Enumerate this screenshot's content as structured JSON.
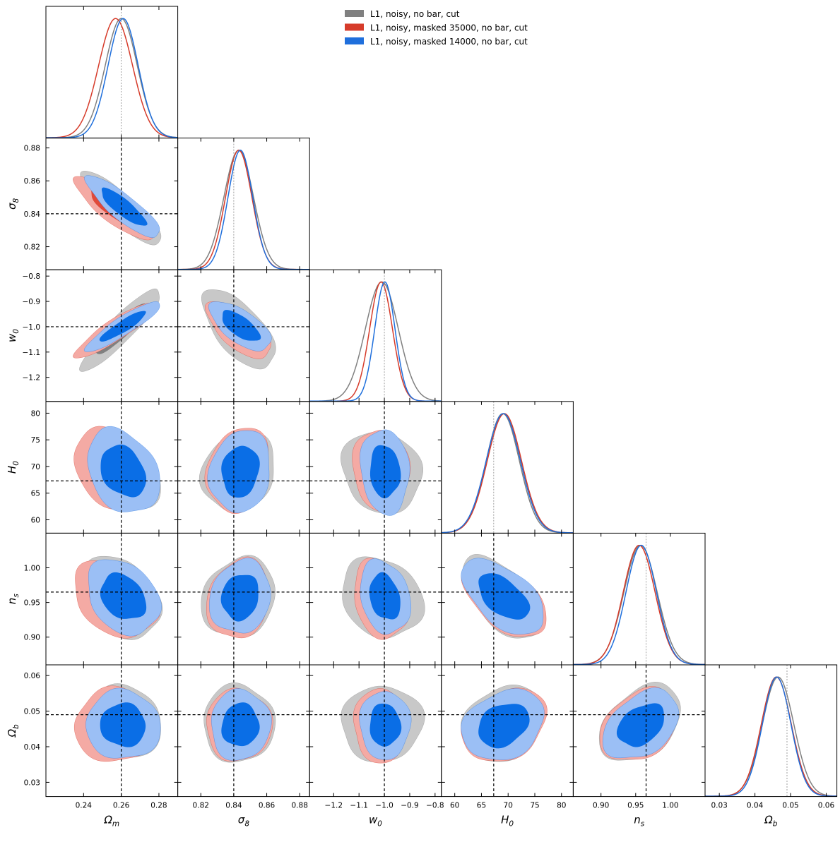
{
  "chart_data": {
    "type": "triangle",
    "params": [
      {
        "name": "omega_m",
        "sym": "Ω",
        "sub": "m",
        "range": [
          0.22,
          0.29
        ],
        "ticks": [
          0.24,
          0.26,
          0.28
        ],
        "tickLabels": [
          "0.24",
          "0.26",
          "0.28"
        ],
        "truth": 0.26
      },
      {
        "name": "sigma_8",
        "sym": "σ",
        "sub": "8",
        "range": [
          0.806,
          0.886
        ],
        "ticks": [
          0.82,
          0.84,
          0.86,
          0.88
        ],
        "tickLabels": [
          "0.82",
          "0.84",
          "0.86",
          "0.88"
        ],
        "truth": 0.84
      },
      {
        "name": "w_0",
        "sym": "w",
        "sub": "0",
        "range": [
          -1.295,
          -0.775
        ],
        "ticks": [
          -1.2,
          -1.1,
          -1.0,
          -0.9,
          -0.8
        ],
        "tickLabels": [
          "−1.2",
          "−1.1",
          "−1.0",
          "−0.9",
          "−0.8"
        ],
        "truth": -1.0
      },
      {
        "name": "H_0",
        "sym": "H",
        "sub": "0",
        "range": [
          57.5,
          82.2
        ],
        "ticks": [
          60,
          65,
          70,
          75,
          80
        ],
        "tickLabels": [
          "60",
          "65",
          "70",
          "75",
          "80"
        ],
        "truth": 67.3
      },
      {
        "name": "n_s",
        "sym": "n",
        "sub": "s",
        "range": [
          0.86,
          1.05
        ],
        "ticks": [
          0.9,
          0.95,
          1.0
        ],
        "tickLabels": [
          "0.90",
          "0.95",
          "1.00"
        ],
        "truth": 0.965
      },
      {
        "name": "omega_b",
        "sym": "Ω",
        "sub": "b",
        "range": [
          0.026,
          0.063
        ],
        "ticks": [
          0.03,
          0.04,
          0.05,
          0.06
        ],
        "tickLabels": [
          "0.03",
          "0.04",
          "0.05",
          "0.06"
        ],
        "truth": 0.049
      }
    ],
    "series": [
      {
        "name": "L1, noisy, no bar, cut",
        "line": "#808080",
        "fill68": "#808080",
        "fill95": "#c8c8c8",
        "mean": [
          0.26,
          0.843,
          -1.01,
          69.0,
          0.957,
          0.0465
        ],
        "sd": [
          0.0085,
          0.009,
          0.065,
          3.1,
          0.024,
          0.0044
        ]
      },
      {
        "name": "L1, noisy, masked 35000, no bar, cut",
        "line": "#d63b2a",
        "fill68": "#e04a3a",
        "fill95": "#f4aaa4",
        "mean": [
          0.257,
          0.843,
          -1.013,
          69.3,
          0.955,
          0.046
        ],
        "sd": [
          0.009,
          0.008,
          0.045,
          3.2,
          0.023,
          0.0042
        ]
      },
      {
        "name": "L1, noisy, masked 14000, no bar, cut",
        "line": "#1f6fdc",
        "fill68": "#0a6ee6",
        "fill95": "#9bbff5",
        "mean": [
          0.261,
          0.844,
          -0.998,
          69.1,
          0.958,
          0.0461
        ],
        "sd": [
          0.008,
          0.0075,
          0.04,
          3.2,
          0.022,
          0.004
        ]
      }
    ],
    "correlations": [
      [
        1,
        -0.85,
        0.9,
        -0.3,
        -0.3,
        0.0
      ],
      [
        -0.85,
        1,
        -0.65,
        0.15,
        0.15,
        0.0
      ],
      [
        0.9,
        -0.65,
        1,
        -0.1,
        -0.2,
        0.0
      ],
      [
        -0.3,
        0.15,
        -0.1,
        1,
        -0.55,
        0.25
      ],
      [
        -0.3,
        0.15,
        -0.2,
        -0.55,
        1,
        0.35
      ],
      [
        0.0,
        0.0,
        0.0,
        0.25,
        0.35,
        1
      ]
    ],
    "legend": {
      "placement": "top-right",
      "entries": [
        "L1, noisy, no bar, cut",
        "L1, noisy, masked 35000, no bar, cut",
        "L1, noisy, masked 14000, no bar, cut"
      ]
    }
  }
}
